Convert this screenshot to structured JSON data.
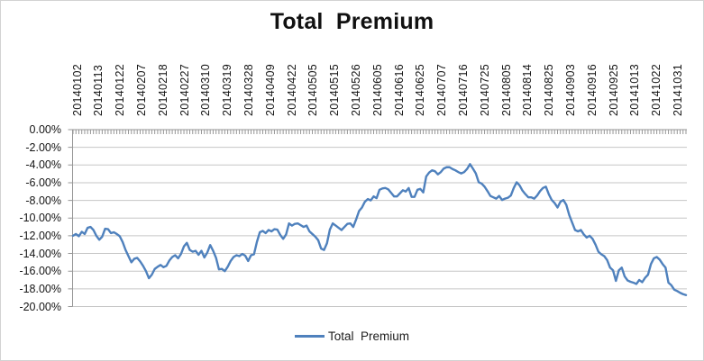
{
  "chart": {
    "title": "Total  Premium",
    "legend_label": "Total  Premium"
  },
  "colors": {
    "line": "#4f81bd",
    "gridline": "#c6c6c6",
    "axis": "#969696",
    "text": "#141414",
    "frame_border": "#d3d3d3",
    "background": "#ffffff"
  },
  "chart_data": {
    "type": "line",
    "title": "Total  Premium",
    "xlabel": "",
    "ylabel": "",
    "ylim": [
      -20,
      0
    ],
    "y_tick_step": 2,
    "grid": "horizontal",
    "legend_position": "bottom",
    "x_axis_position": "at-zero-top",
    "y_tick_labels": [
      "0.00%",
      "-2.00%",
      "-4.00%",
      "-6.00%",
      "-8.00%",
      "-10.00%",
      "-12.00%",
      "-14.00%",
      "-16.00%",
      "-18.00%",
      "-20.00%"
    ],
    "x_tick_labels": [
      "20140102",
      "20140113",
      "20140122",
      "20140207",
      "20140218",
      "20140227",
      "20140310",
      "20140319",
      "20140328",
      "20140409",
      "20140422",
      "20140505",
      "20140515",
      "20140526",
      "20140605",
      "20140616",
      "20140625",
      "20140707",
      "20140716",
      "20140725",
      "20140805",
      "20140814",
      "20140825",
      "20140903",
      "20140916",
      "20140925",
      "20141013",
      "20141022",
      "20141031"
    ],
    "y_unit": "%",
    "series": [
      {
        "name": "Total  Premium",
        "color": "#4f81bd",
        "values": [
          -12.0,
          -11.8,
          -12.05,
          -11.55,
          -11.8,
          -11.1,
          -11.0,
          -11.35,
          -12.0,
          -12.45,
          -12.1,
          -11.2,
          -11.25,
          -11.7,
          -11.6,
          -11.8,
          -12.05,
          -12.7,
          -13.6,
          -14.3,
          -15.0,
          -14.6,
          -14.5,
          -14.9,
          -15.4,
          -16.0,
          -16.8,
          -16.4,
          -15.75,
          -15.5,
          -15.3,
          -15.55,
          -15.4,
          -14.8,
          -14.4,
          -14.2,
          -14.55,
          -14.05,
          -13.2,
          -12.8,
          -13.6,
          -13.8,
          -13.7,
          -14.15,
          -13.7,
          -14.45,
          -13.9,
          -13.05,
          -13.7,
          -14.5,
          -15.8,
          -15.75,
          -16.0,
          -15.5,
          -14.85,
          -14.4,
          -14.2,
          -14.3,
          -14.05,
          -14.25,
          -14.85,
          -14.2,
          -14.1,
          -12.7,
          -11.6,
          -11.45,
          -11.7,
          -11.35,
          -11.5,
          -11.25,
          -11.3,
          -11.9,
          -12.35,
          -11.85,
          -10.6,
          -10.85,
          -10.65,
          -10.6,
          -10.8,
          -11.0,
          -10.85,
          -11.5,
          -11.8,
          -12.1,
          -12.5,
          -13.45,
          -13.6,
          -12.85,
          -11.3,
          -10.6,
          -10.85,
          -11.1,
          -11.35,
          -11.0,
          -10.65,
          -10.6,
          -11.0,
          -10.15,
          -9.2,
          -8.8,
          -8.15,
          -7.85,
          -8.0,
          -7.55,
          -7.75,
          -6.8,
          -6.65,
          -6.6,
          -6.75,
          -7.15,
          -7.55,
          -7.55,
          -7.2,
          -6.85,
          -7.0,
          -6.6,
          -7.6,
          -7.6,
          -6.8,
          -6.7,
          -7.1,
          -5.3,
          -4.85,
          -4.6,
          -4.7,
          -5.05,
          -4.8,
          -4.4,
          -4.25,
          -4.25,
          -4.45,
          -4.6,
          -4.8,
          -4.95,
          -4.8,
          -4.45,
          -3.9,
          -4.4,
          -4.95,
          -5.95,
          -6.1,
          -6.45,
          -6.95,
          -7.5,
          -7.65,
          -7.8,
          -7.5,
          -7.95,
          -7.8,
          -7.7,
          -7.45,
          -6.6,
          -5.95,
          -6.3,
          -6.9,
          -7.3,
          -7.65,
          -7.65,
          -7.8,
          -7.45,
          -6.95,
          -6.6,
          -6.45,
          -7.3,
          -7.95,
          -8.3,
          -8.8,
          -8.15,
          -7.95,
          -8.5,
          -9.65,
          -10.5,
          -11.35,
          -11.5,
          -11.35,
          -11.85,
          -12.2,
          -12.0,
          -12.35,
          -13.0,
          -13.8,
          -14.1,
          -14.3,
          -14.75,
          -15.6,
          -15.9,
          -17.1,
          -15.9,
          -15.6,
          -16.6,
          -17.05,
          -17.2,
          -17.3,
          -17.45,
          -17.0,
          -17.25,
          -16.75,
          -16.4,
          -15.2,
          -14.55,
          -14.4,
          -14.7,
          -15.2,
          -15.6,
          -17.3,
          -17.6,
          -18.1,
          -18.25,
          -18.45,
          -18.6,
          -18.7
        ]
      }
    ]
  }
}
